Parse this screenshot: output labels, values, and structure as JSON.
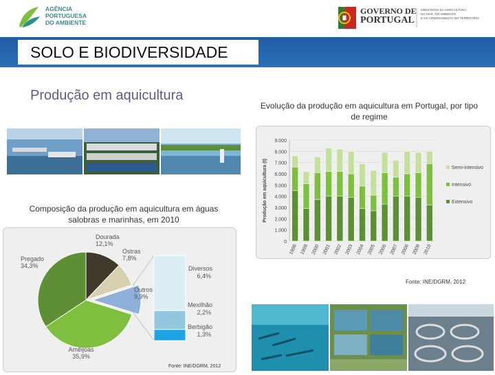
{
  "header": {
    "apa_lines": [
      "AGÊNCIA",
      "PORTUGUESA",
      "DO AMBIENTE"
    ],
    "gov_lines": [
      "GOVERNO DE",
      "PORTUGAL"
    ],
    "gov_sub_lines": [
      "MINISTÉRIO DA AGRICULTURA,",
      "DO MAR, DO AMBIENTE",
      "E DO ORDENAMENTO DO TERRITÓRIO"
    ]
  },
  "section_title": "SOLO E BIODIVERSIDADE",
  "page_subtitle": "Produção em aquicultura",
  "chart_data": [
    {
      "type": "pie",
      "title": "Composição da produção em aquicultura em águas salobras e marinhas, em 2010",
      "slices": [
        {
          "label": "Dourada",
          "value": 12.1,
          "value_label": "12,1%",
          "color": "#3f3a2c"
        },
        {
          "label": "Ostras",
          "value": 7.8,
          "value_label": "7,8%",
          "color": "#d6d0b0"
        },
        {
          "label": "Outros",
          "value": 9.9,
          "value_label": "9,9%",
          "color": "#8fb0d8"
        },
        {
          "label": "Amêijoas",
          "value": 35.9,
          "value_label": "35,9%",
          "color": "#7fbf3f"
        },
        {
          "label": "Pregado",
          "value": 34.3,
          "value_label": "34,3%",
          "color": "#5e8f34"
        }
      ],
      "breakdown": [
        {
          "label": "Diversos",
          "value": 6.4,
          "value_label": "6,4%",
          "color": "#daeef4"
        },
        {
          "label": "Mexilhão",
          "value": 2.2,
          "value_label": "2,2%",
          "color": "#93c6df"
        },
        {
          "label": "Berbigão",
          "value": 1.3,
          "value_label": "1,3%",
          "color": "#1ea3e6"
        }
      ],
      "source": "Fonte: INE/DGRM, 2012"
    },
    {
      "type": "bar",
      "stacked": true,
      "title": "Evolução da produção em aquicultura em Portugal, por tipo de regime",
      "ylabel": "Produção em aquicultura (t)",
      "ylim": [
        0,
        9000
      ],
      "y_ticks": [
        "0",
        "1.000",
        "2.000",
        "3.000",
        "4.000",
        "5.000",
        "6.000",
        "7.000",
        "8.000",
        "9.000"
      ],
      "categories": [
        "1998",
        "1999",
        "2000",
        "2001",
        "2002",
        "2003",
        "2004",
        "2005",
        "2006",
        "2007",
        "2008",
        "2009",
        "2010"
      ],
      "series": [
        {
          "name": "Extensivo",
          "color": "#5e8f34",
          "values": [
            4500,
            2900,
            3700,
            4000,
            4000,
            3900,
            2900,
            2700,
            3300,
            4000,
            4000,
            3900,
            3200
          ]
        },
        {
          "name": "Intensivo",
          "color": "#7fbf3f",
          "values": [
            2100,
            2200,
            2400,
            2200,
            2200,
            2100,
            2000,
            1400,
            2800,
            1700,
            2000,
            2200,
            3700
          ]
        },
        {
          "name": "Semi-intensivo",
          "color": "#c5df9f",
          "values": [
            1000,
            1100,
            1400,
            2100,
            2000,
            2000,
            2000,
            2200,
            1800,
            1500,
            2000,
            1800,
            1100
          ]
        }
      ],
      "legend_position": "right",
      "source": "Fonte: INE/DGRM, 2012"
    }
  ],
  "colors": {
    "brand_bar": "#2a6fb7",
    "subtitle": "#5b5b8b"
  }
}
